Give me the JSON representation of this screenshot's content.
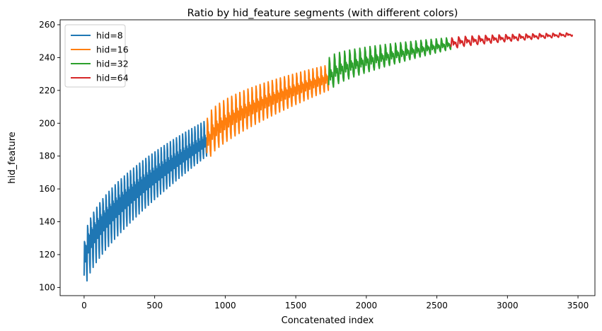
{
  "chart_data": {
    "type": "line",
    "title": "Ratio by hid_feature segments (with different colors)",
    "xlabel": "Concatenated index",
    "ylabel": "hid_feature",
    "xlim": [
      -170,
      3620
    ],
    "ylim": [
      95,
      263
    ],
    "xticks": [
      0,
      500,
      1000,
      1500,
      2000,
      2500,
      3000,
      3500
    ],
    "yticks": [
      100,
      120,
      140,
      160,
      180,
      200,
      220,
      240,
      260
    ],
    "legend_position": "upper-left",
    "series": [
      {
        "name": "hid=8",
        "color": "#1f77b4",
        "x_range": [
          0,
          869
        ],
        "n_cycles": 40,
        "low_start": 104,
        "low_end": 180,
        "high_start": 128,
        "high_end": 201,
        "trend_start": 125,
        "trend_end": 190
      },
      {
        "name": "hid=16",
        "color": "#ff7f0e",
        "x_range": [
          870,
          1732
        ],
        "n_cycles": 30,
        "low_start": 180,
        "low_end": 220,
        "high_start": 203,
        "high_end": 235,
        "trend_start": 192,
        "trend_end": 228
      },
      {
        "name": "hid=32",
        "color": "#2ca02c",
        "x_range": [
          1733,
          2599
        ],
        "n_cycles": 24,
        "low_start": 222,
        "low_end": 245,
        "high_start": 240,
        "high_end": 252,
        "trend_start": 230,
        "trend_end": 248
      },
      {
        "name": "hid=64",
        "color": "#d62728",
        "x_range": [
          2600,
          3460
        ],
        "n_cycles": 18,
        "low_start": 246,
        "low_end": 253,
        "high_start": 252,
        "high_end": 255,
        "trend_start": 249,
        "trend_end": 254
      }
    ]
  }
}
